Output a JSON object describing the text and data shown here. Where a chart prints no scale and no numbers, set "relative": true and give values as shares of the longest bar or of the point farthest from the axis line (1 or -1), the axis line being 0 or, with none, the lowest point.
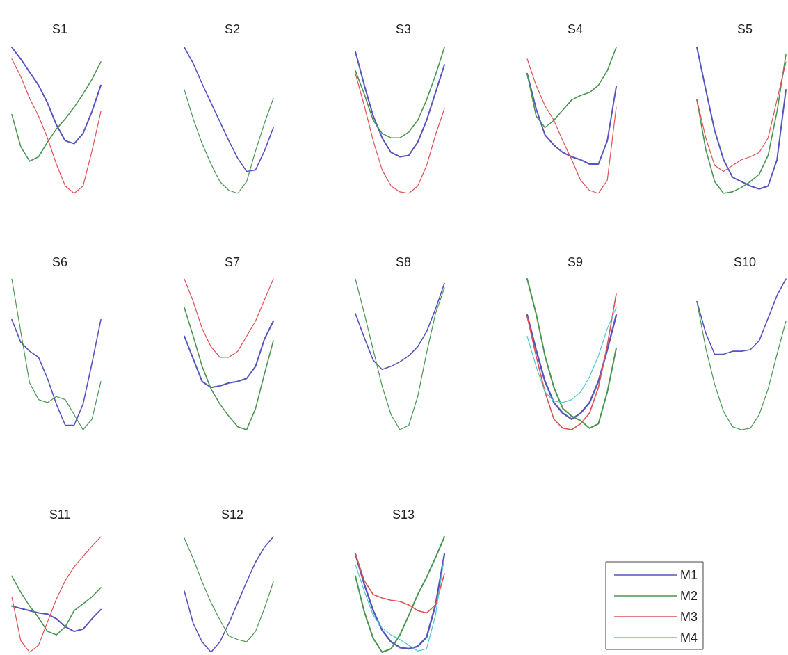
{
  "chart_data": [
    {
      "type": "line",
      "title": "S1",
      "relative": true,
      "categories": [
        null,
        null,
        null,
        null,
        null,
        null,
        null,
        null,
        null,
        null,
        null
      ],
      "series": [
        {
          "color": "#5555c0",
          "values": [
            1.0,
            0.92,
            0.83,
            0.74,
            0.62,
            0.47,
            0.36,
            0.34,
            0.41,
            0.56,
            0.74
          ]
        },
        {
          "color": "#4a9650",
          "values": [
            0.54,
            0.32,
            0.22,
            0.25,
            0.35,
            0.44,
            0.51,
            0.59,
            0.68,
            0.78,
            0.9
          ]
        },
        {
          "color": "#e05050",
          "values": [
            0.92,
            0.8,
            0.65,
            0.53,
            0.38,
            0.2,
            0.05,
            0,
            0.05,
            0.29,
            0.56
          ]
        }
      ]
    },
    {
      "type": "line",
      "title": "S2",
      "relative": true,
      "categories": [
        null,
        null,
        null,
        null,
        null,
        null,
        null,
        null,
        null,
        null,
        null
      ],
      "series": [
        {
          "color": "#5555c0",
          "values": [
            1.0,
            0.89,
            0.75,
            0.62,
            0.49,
            0.36,
            0.24,
            0.15,
            0.16,
            0.29,
            0.45
          ]
        },
        {
          "color": "#4a9650",
          "values": [
            0.71,
            0.51,
            0.34,
            0.2,
            0.08,
            0.02,
            0,
            0.08,
            0.29,
            0.48,
            0.65
          ]
        }
      ]
    },
    {
      "type": "line",
      "title": "S3",
      "relative": true,
      "categories": [
        null,
        null,
        null,
        null,
        null,
        null,
        null,
        null,
        null,
        null,
        null
      ],
      "series": [
        {
          "color": "#5555c0",
          "values": [
            0.97,
            0.74,
            0.53,
            0.38,
            0.28,
            0.25,
            0.26,
            0.35,
            0.5,
            0.69,
            0.88
          ]
        },
        {
          "color": "#4a9650",
          "values": [
            0.84,
            0.68,
            0.5,
            0.41,
            0.38,
            0.38,
            0.42,
            0.5,
            0.64,
            0.81,
            1.0
          ]
        },
        {
          "color": "#e05050",
          "values": [
            0.82,
            0.6,
            0.36,
            0.16,
            0.05,
            0.01,
            0,
            0.05,
            0.19,
            0.4,
            0.58
          ]
        }
      ]
    },
    {
      "type": "line",
      "title": "S4",
      "relative": true,
      "categories": [
        null,
        null,
        null,
        null,
        null,
        null,
        null,
        null,
        null,
        null,
        null
      ],
      "series": [
        {
          "color": "#5555c0",
          "values": [
            0.82,
            0.58,
            0.4,
            0.33,
            0.28,
            0.25,
            0.23,
            0.2,
            0.2,
            0.36,
            0.73
          ]
        },
        {
          "color": "#4a9650",
          "values": [
            0.82,
            0.53,
            0.45,
            0.5,
            0.57,
            0.64,
            0.67,
            0.69,
            0.74,
            0.84,
            1.0
          ]
        },
        {
          "color": "#e05050",
          "values": [
            0.92,
            0.74,
            0.6,
            0.5,
            0.36,
            0.23,
            0.09,
            0.02,
            0,
            0.09,
            0.59
          ]
        }
      ]
    },
    {
      "type": "line",
      "title": "S5",
      "relative": true,
      "categories": [
        null,
        null,
        null,
        null,
        null,
        null,
        null,
        null,
        null,
        null,
        null
      ],
      "series": [
        {
          "color": "#5555c0",
          "values": [
            1.0,
            0.71,
            0.43,
            0.23,
            0.11,
            0.08,
            0.05,
            0.03,
            0.05,
            0.23,
            0.71
          ]
        },
        {
          "color": "#4a9650",
          "values": [
            0.64,
            0.3,
            0.08,
            0,
            0.01,
            0.04,
            0.08,
            0.13,
            0.26,
            0.56,
            0.95
          ]
        },
        {
          "color": "#e05050",
          "values": [
            0.64,
            0.38,
            0.19,
            0.15,
            0.19,
            0.23,
            0.25,
            0.28,
            0.38,
            0.64,
            0.9
          ]
        }
      ]
    },
    {
      "type": "line",
      "title": "S6",
      "relative": true,
      "categories": [
        null,
        null,
        null,
        null,
        null,
        null,
        null,
        null,
        null,
        null,
        null
      ],
      "series": [
        {
          "color": "#5555c0",
          "values": [
            0.73,
            0.58,
            0.52,
            0.48,
            0.34,
            0.17,
            0.03,
            0.03,
            0.17,
            0.44,
            0.73
          ]
        },
        {
          "color": "#4a9650",
          "values": [
            1.0,
            0.65,
            0.31,
            0.2,
            0.18,
            0.22,
            0.2,
            0.1,
            0,
            0.07,
            0.32
          ]
        }
      ]
    },
    {
      "type": "line",
      "title": "S7",
      "relative": true,
      "categories": [
        null,
        null,
        null,
        null,
        null,
        null,
        null,
        null,
        null,
        null,
        null
      ],
      "series": [
        {
          "color": "#5555c0",
          "values": [
            0.62,
            0.47,
            0.32,
            0.28,
            0.29,
            0.31,
            0.32,
            0.34,
            0.42,
            0.6,
            0.72
          ]
        },
        {
          "color": "#4a9650",
          "values": [
            0.81,
            0.62,
            0.42,
            0.27,
            0.17,
            0.09,
            0.02,
            0,
            0.14,
            0.37,
            0.59
          ]
        },
        {
          "color": "#e05050",
          "values": [
            1.0,
            0.85,
            0.67,
            0.55,
            0.48,
            0.48,
            0.52,
            0.62,
            0.72,
            0.86,
            1.0
          ]
        }
      ]
    },
    {
      "type": "line",
      "title": "S8",
      "relative": true,
      "categories": [
        null,
        null,
        null,
        null,
        null,
        null,
        null,
        null,
        null,
        null,
        null
      ],
      "series": [
        {
          "color": "#5555c0",
          "values": [
            0.77,
            0.61,
            0.46,
            0.4,
            0.42,
            0.45,
            0.49,
            0.55,
            0.65,
            0.8,
            0.97
          ]
        },
        {
          "color": "#4a9650",
          "values": [
            1.0,
            0.77,
            0.53,
            0.29,
            0.1,
            0,
            0.03,
            0.22,
            0.51,
            0.77,
            0.94
          ]
        }
      ]
    },
    {
      "type": "line",
      "title": "S9",
      "relative": true,
      "categories": [
        null,
        null,
        null,
        null,
        null,
        null,
        null,
        null,
        null,
        null,
        null
      ],
      "series": [
        {
          "color": "#5555c0",
          "values": [
            0.76,
            0.53,
            0.32,
            0.18,
            0.11,
            0.07,
            0.11,
            0.18,
            0.32,
            0.53,
            0.76
          ]
        },
        {
          "color": "#4a9650",
          "values": [
            1.0,
            0.77,
            0.49,
            0.28,
            0.14,
            0.09,
            0.06,
            0.01,
            0.04,
            0.25,
            0.54
          ]
        },
        {
          "color": "#e05050",
          "values": [
            0.75,
            0.49,
            0.25,
            0.07,
            0.01,
            0,
            0.04,
            0.11,
            0.28,
            0.56,
            0.9
          ]
        },
        {
          "color": "#50c8d0",
          "values": [
            0.62,
            0.42,
            0.25,
            0.19,
            0.18,
            0.2,
            0.25,
            0.35,
            0.49,
            0.67,
            0.81
          ]
        }
      ]
    },
    {
      "type": "line",
      "title": "S10",
      "relative": true,
      "categories": [
        null,
        null,
        null,
        null,
        null,
        null,
        null,
        null,
        null,
        null,
        null
      ],
      "series": [
        {
          "color": "#5555c0",
          "values": [
            0.85,
            0.64,
            0.5,
            0.5,
            0.52,
            0.52,
            0.53,
            0.59,
            0.74,
            0.89,
            1.0
          ]
        },
        {
          "color": "#4a9650",
          "values": [
            0.85,
            0.54,
            0.3,
            0.12,
            0.02,
            0,
            0.01,
            0.1,
            0.27,
            0.5,
            0.72
          ]
        }
      ]
    },
    {
      "type": "line",
      "title": "S11",
      "relative": true,
      "categories": [
        null,
        null,
        null,
        null,
        null,
        null,
        null,
        null,
        null,
        null,
        null
      ],
      "series": [
        {
          "color": "#5555c0",
          "values": [
            0.4,
            0.38,
            0.36,
            0.34,
            0.33,
            0.29,
            0.22,
            0.18,
            0.2,
            0.29,
            0.37
          ]
        },
        {
          "color": "#4a9650",
          "values": [
            0.66,
            0.52,
            0.4,
            0.3,
            0.18,
            0.15,
            0.22,
            0.36,
            0.42,
            0.48,
            0.56
          ]
        },
        {
          "color": "#e05050",
          "values": [
            0.48,
            0.1,
            0,
            0.06,
            0.26,
            0.46,
            0.62,
            0.74,
            0.83,
            0.92,
            1.0
          ]
        }
      ]
    },
    {
      "type": "line",
      "title": "S12",
      "relative": true,
      "categories": [
        null,
        null,
        null,
        null,
        null,
        null,
        null,
        null,
        null,
        null,
        null
      ],
      "series": [
        {
          "color": "#5555c0",
          "values": [
            0.53,
            0.25,
            0.09,
            0,
            0.09,
            0.25,
            0.43,
            0.61,
            0.78,
            0.91,
            1.0
          ]
        },
        {
          "color": "#4a9650",
          "values": [
            0.99,
            0.81,
            0.61,
            0.43,
            0.28,
            0.14,
            0.11,
            0.09,
            0.18,
            0.38,
            0.61
          ]
        }
      ]
    },
    {
      "type": "line",
      "title": "S13",
      "relative": true,
      "legend": "right",
      "categories": [
        null,
        null,
        null,
        null,
        null,
        null,
        null,
        null,
        null,
        null,
        null
      ],
      "series": [
        {
          "name": "M1",
          "color": "#5555c0",
          "values": [
            0.85,
            0.59,
            0.36,
            0.19,
            0.09,
            0.04,
            0.03,
            0.05,
            0.13,
            0.41,
            0.85
          ]
        },
        {
          "name": "M2",
          "color": "#4a9650",
          "values": [
            0.66,
            0.35,
            0.12,
            0,
            0.03,
            0.15,
            0.32,
            0.5,
            0.65,
            0.82,
            1.0
          ]
        },
        {
          "name": "M3",
          "color": "#e05050",
          "values": [
            0.85,
            0.62,
            0.5,
            0.47,
            0.45,
            0.44,
            0.41,
            0.36,
            0.34,
            0.41,
            0.68
          ]
        },
        {
          "name": "M4",
          "color": "#50c8d0",
          "values": [
            0.76,
            0.53,
            0.32,
            0.21,
            0.15,
            0.11,
            0.06,
            0.01,
            0.03,
            0.32,
            0.83
          ]
        }
      ]
    }
  ]
}
